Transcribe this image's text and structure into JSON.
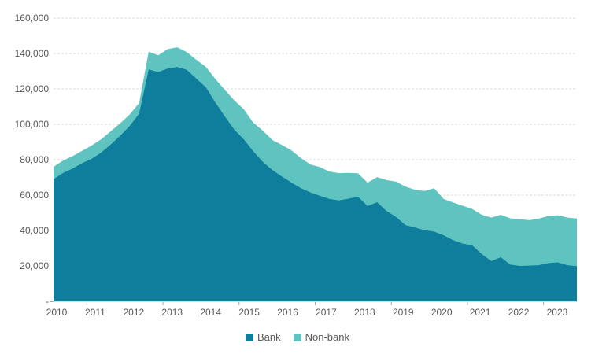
{
  "chart_data": {
    "type": "area",
    "stacked": true,
    "title": "",
    "xlabel": "",
    "ylabel": "",
    "x_year_labels": [
      "2010",
      "2011",
      "2012",
      "2013",
      "2014",
      "2015",
      "2016",
      "2017",
      "2018",
      "2019",
      "2020",
      "2021",
      "2022",
      "2023"
    ],
    "x_categories": [
      "2010 Q1",
      "2010 Q2",
      "2010 Q3",
      "2010 Q4",
      "2011 Q1",
      "2011 Q2",
      "2011 Q3",
      "2011 Q4",
      "2012 Q1",
      "2012 Q2",
      "2012 Q3",
      "2012 Q4",
      "2013 Q1",
      "2013 Q2",
      "2013 Q3",
      "2013 Q4",
      "2014 Q1",
      "2014 Q2",
      "2014 Q3",
      "2014 Q4",
      "2015 Q1",
      "2015 Q2",
      "2015 Q3",
      "2015 Q4",
      "2016 Q1",
      "2016 Q2",
      "2016 Q3",
      "2016 Q4",
      "2017 Q1",
      "2017 Q2",
      "2017 Q3",
      "2017 Q4",
      "2018 Q1",
      "2018 Q2",
      "2018 Q3",
      "2018 Q4",
      "2019 Q1",
      "2019 Q2",
      "2019 Q3",
      "2019 Q4",
      "2020 Q1",
      "2020 Q2",
      "2020 Q3",
      "2020 Q4",
      "2021 Q1",
      "2021 Q2",
      "2021 Q3",
      "2021 Q4",
      "2022 Q1",
      "2022 Q2",
      "2022 Q3",
      "2022 Q4",
      "2023 Q1",
      "2023 Q2",
      "2023 Q3",
      "2023 Q4"
    ],
    "series": [
      {
        "name": "Bank",
        "color": "#0e7e9c",
        "values": [
          69000,
          72500,
          75000,
          78000,
          80500,
          84000,
          88500,
          93500,
          99000,
          106000,
          131000,
          129500,
          131500,
          132400,
          130800,
          125800,
          121000,
          112400,
          104500,
          97000,
          91500,
          84700,
          78700,
          74200,
          70500,
          67100,
          63900,
          61500,
          59600,
          57800,
          57000,
          58000,
          59100,
          53800,
          56000,
          51000,
          47600,
          43000,
          41700,
          40200,
          39400,
          37300,
          34500,
          32600,
          31600,
          26700,
          22700,
          24900,
          20700,
          20000,
          20200,
          20400,
          21600,
          22000,
          20400,
          19800
        ]
      },
      {
        "name": "Non-bank",
        "color": "#5fc4c0",
        "values": [
          7000,
          7000,
          7000,
          7000,
          7500,
          7500,
          7500,
          7000,
          6500,
          6000,
          10000,
          9500,
          11000,
          11100,
          10000,
          10700,
          11500,
          13300,
          15000,
          16500,
          17000,
          16200,
          17700,
          16900,
          17800,
          18200,
          17000,
          15800,
          16200,
          15500,
          15400,
          14600,
          13200,
          13200,
          14200,
          17500,
          20000,
          21800,
          21300,
          22100,
          24500,
          20500,
          21300,
          21400,
          20600,
          22200,
          24600,
          24000,
          26200,
          26400,
          25600,
          26300,
          26600,
          26600,
          26900,
          27000
        ]
      }
    ],
    "ylim": [
      0,
      160000
    ],
    "y_tick_step": 20000,
    "y_tick_labels": [
      "-",
      "20,000",
      "40,000",
      "60,000",
      "80,000",
      "100,000",
      "120,000",
      "140,000",
      "160,000"
    ],
    "grid": true,
    "legend_position": "bottom"
  },
  "style": {
    "text_color": "#595959",
    "grid_color": "#d9d9d9",
    "background": "#ffffff"
  }
}
